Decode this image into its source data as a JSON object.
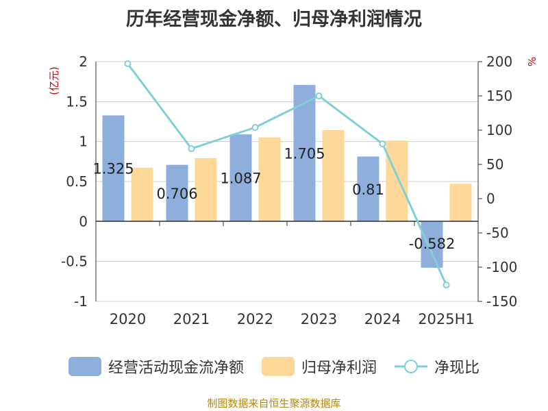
{
  "title": "历年经营现金净额、归母净利润情况",
  "source": "制图数据来自恒生聚源数据库",
  "chart_data": {
    "type": "bar",
    "title": "历年经营现金净额、归母净利润情况",
    "categories": [
      "2020",
      "2021",
      "2022",
      "2023",
      "2024",
      "2025H1"
    ],
    "left_axis": {
      "unit_label": "(亿元)",
      "range": [
        -1,
        2
      ],
      "ticks": [
        -1,
        -0.5,
        0,
        0.5,
        1,
        1.5,
        2
      ],
      "tick_labels": [
        "-1",
        "-0.5",
        "0",
        "0.5",
        "1",
        "1.5",
        "2"
      ]
    },
    "right_axis": {
      "unit_label": "%",
      "range": [
        -150,
        200
      ],
      "ticks": [
        -150,
        -100,
        -50,
        0,
        50,
        100,
        150,
        200
      ],
      "tick_labels": [
        "-150",
        "-100",
        "-50",
        "0",
        "50",
        "100",
        "150",
        "200"
      ]
    },
    "grid": true,
    "legend_position": "bottom",
    "series": [
      {
        "name": "经营活动现金流净额",
        "type": "bar",
        "axis": "left",
        "color": "#8eaedb",
        "values": [
          1.325,
          0.706,
          1.087,
          1.705,
          0.81,
          -0.582
        ],
        "data_labels": [
          "1.325",
          "0.706",
          "1.087",
          "1.705",
          "0.81",
          "-0.582"
        ]
      },
      {
        "name": "归母净利润",
        "type": "bar",
        "axis": "left",
        "color": "#fed899",
        "values": [
          0.67,
          0.79,
          1.05,
          1.14,
          1.01,
          0.47
        ]
      },
      {
        "name": "净现比",
        "type": "line",
        "axis": "right",
        "color": "#7fcfd6",
        "values": [
          197,
          73,
          104,
          150,
          80,
          -126
        ]
      }
    ]
  },
  "colors": {
    "title": "#333333",
    "axis": "#333333",
    "grid": "#cccccc",
    "unit_label": "#cc0000",
    "source": "#b8860b"
  }
}
